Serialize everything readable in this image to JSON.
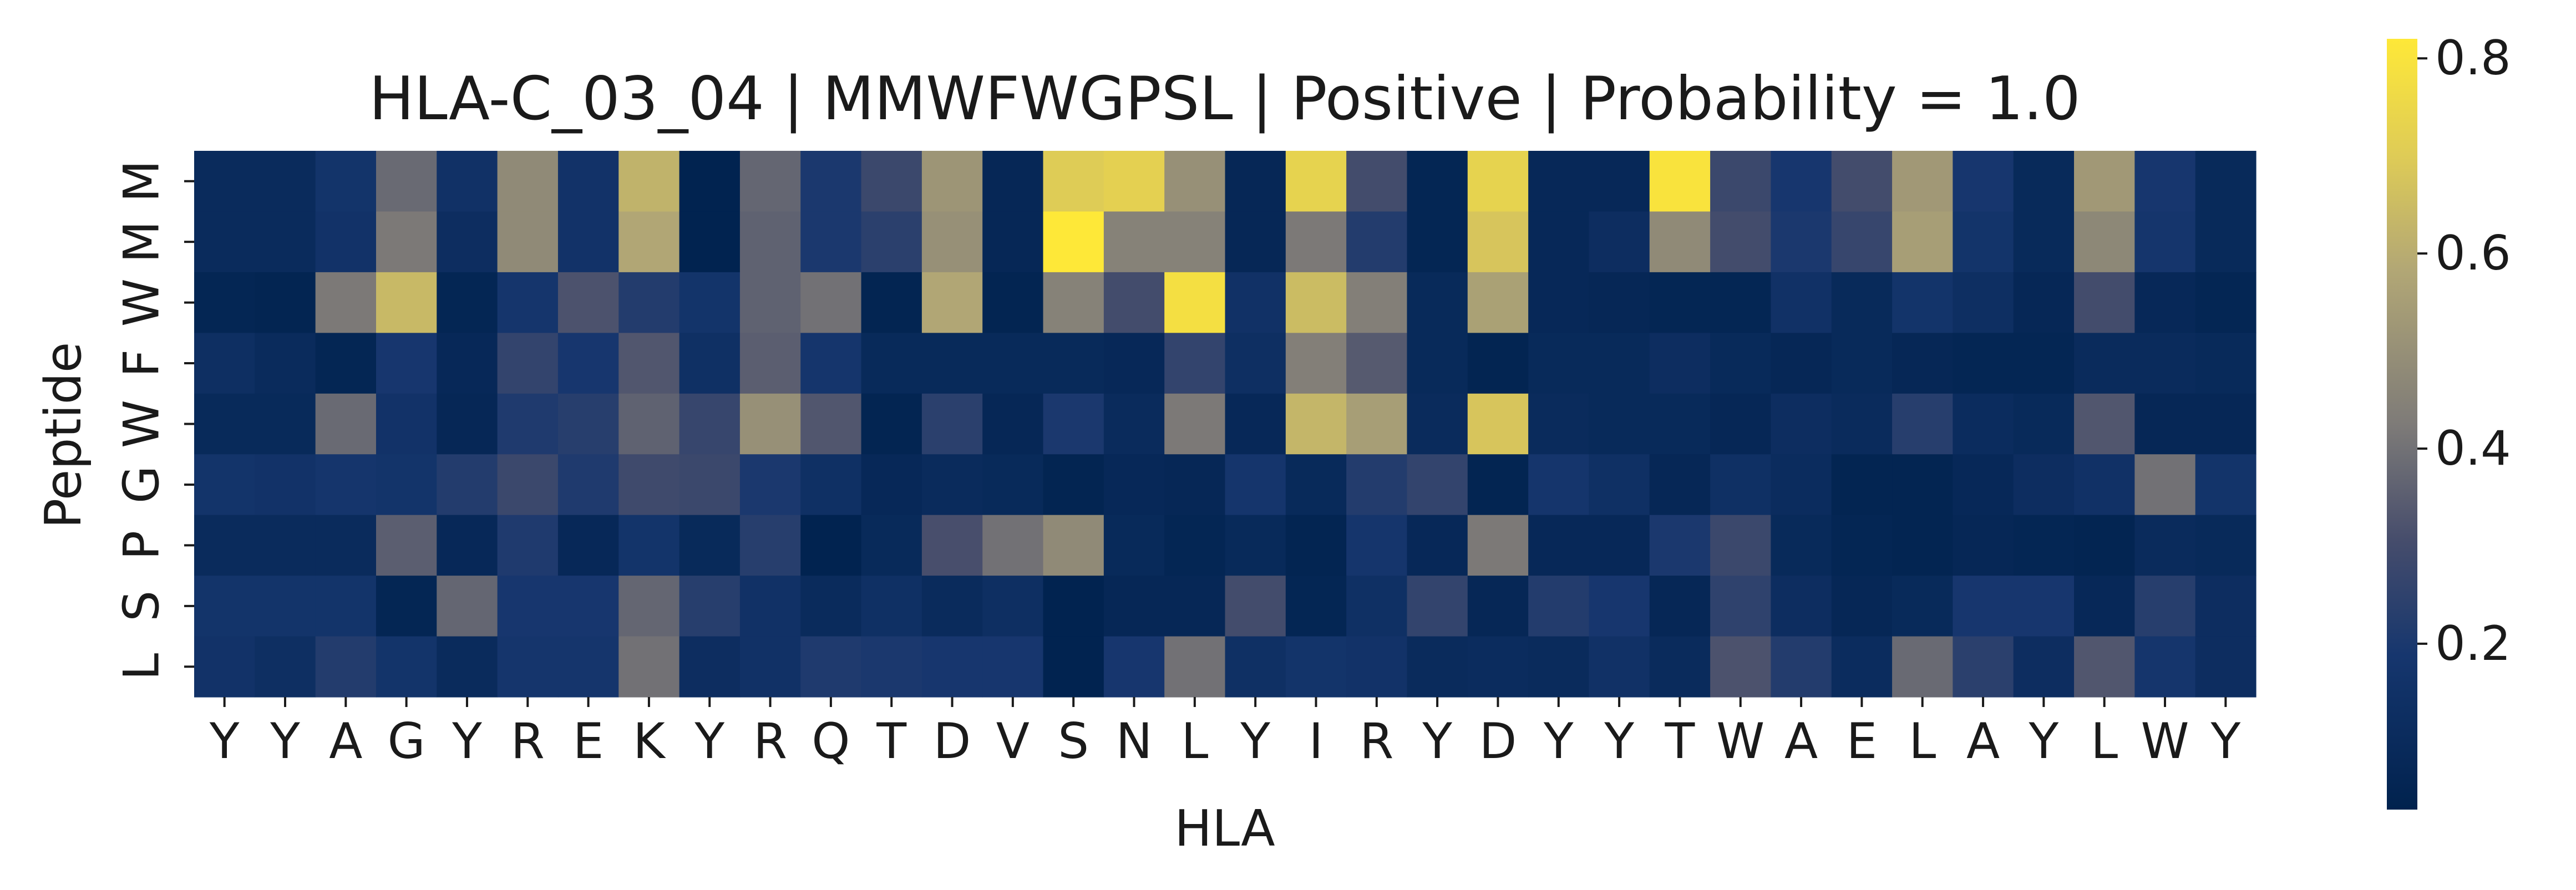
{
  "chart_data": {
    "type": "heatmap",
    "title": "HLA-C_03_04 | MMWFWGPSL | Positive | Probability = 1.0",
    "xlabel": "HLA",
    "ylabel": "Peptide",
    "x_categories": [
      "Y",
      "Y",
      "A",
      "G",
      "Y",
      "R",
      "E",
      "K",
      "Y",
      "R",
      "Q",
      "T",
      "D",
      "V",
      "S",
      "N",
      "L",
      "Y",
      "I",
      "R",
      "Y",
      "D",
      "Y",
      "Y",
      "T",
      "W",
      "A",
      "E",
      "L",
      "A",
      "Y",
      "L",
      "W",
      "Y"
    ],
    "y_categories": [
      "M",
      "M",
      "W",
      "F",
      "W",
      "G",
      "P",
      "S",
      "L"
    ],
    "values": [
      [
        0.1,
        0.1,
        0.17,
        0.38,
        0.15,
        0.48,
        0.16,
        0.62,
        0.04,
        0.37,
        0.2,
        0.28,
        0.52,
        0.07,
        0.7,
        0.72,
        0.5,
        0.07,
        0.73,
        0.3,
        0.06,
        0.73,
        0.08,
        0.08,
        0.8,
        0.28,
        0.19,
        0.3,
        0.53,
        0.19,
        0.09,
        0.53,
        0.19,
        0.09
      ],
      [
        0.1,
        0.1,
        0.16,
        0.42,
        0.12,
        0.48,
        0.16,
        0.58,
        0.04,
        0.36,
        0.2,
        0.24,
        0.5,
        0.07,
        0.82,
        0.45,
        0.45,
        0.07,
        0.42,
        0.22,
        0.06,
        0.68,
        0.08,
        0.12,
        0.48,
        0.3,
        0.2,
        0.27,
        0.55,
        0.17,
        0.09,
        0.47,
        0.18,
        0.09
      ],
      [
        0.06,
        0.05,
        0.42,
        0.64,
        0.06,
        0.18,
        0.32,
        0.22,
        0.17,
        0.36,
        0.4,
        0.05,
        0.58,
        0.05,
        0.45,
        0.3,
        0.78,
        0.15,
        0.65,
        0.44,
        0.09,
        0.56,
        0.08,
        0.07,
        0.06,
        0.06,
        0.15,
        0.09,
        0.17,
        0.13,
        0.07,
        0.3,
        0.08,
        0.06
      ],
      [
        0.13,
        0.1,
        0.06,
        0.19,
        0.08,
        0.26,
        0.19,
        0.33,
        0.14,
        0.35,
        0.18,
        0.09,
        0.09,
        0.09,
        0.09,
        0.08,
        0.26,
        0.13,
        0.44,
        0.34,
        0.09,
        0.05,
        0.09,
        0.09,
        0.12,
        0.09,
        0.07,
        0.09,
        0.07,
        0.06,
        0.06,
        0.1,
        0.1,
        0.09
      ],
      [
        0.09,
        0.09,
        0.38,
        0.16,
        0.07,
        0.21,
        0.23,
        0.36,
        0.27,
        0.5,
        0.33,
        0.05,
        0.24,
        0.07,
        0.2,
        0.1,
        0.42,
        0.08,
        0.63,
        0.55,
        0.1,
        0.68,
        0.1,
        0.09,
        0.09,
        0.07,
        0.12,
        0.1,
        0.23,
        0.11,
        0.09,
        0.33,
        0.07,
        0.07
      ],
      [
        0.17,
        0.16,
        0.18,
        0.17,
        0.22,
        0.28,
        0.21,
        0.29,
        0.28,
        0.2,
        0.14,
        0.08,
        0.1,
        0.09,
        0.05,
        0.08,
        0.07,
        0.18,
        0.09,
        0.22,
        0.26,
        0.05,
        0.18,
        0.14,
        0.07,
        0.14,
        0.11,
        0.05,
        0.05,
        0.08,
        0.12,
        0.15,
        0.4,
        0.17
      ],
      [
        0.1,
        0.1,
        0.1,
        0.35,
        0.08,
        0.21,
        0.08,
        0.17,
        0.09,
        0.23,
        0.04,
        0.09,
        0.31,
        0.4,
        0.48,
        0.09,
        0.06,
        0.09,
        0.05,
        0.18,
        0.08,
        0.42,
        0.08,
        0.08,
        0.2,
        0.28,
        0.09,
        0.06,
        0.05,
        0.07,
        0.06,
        0.05,
        0.1,
        0.09
      ],
      [
        0.17,
        0.17,
        0.17,
        0.06,
        0.37,
        0.19,
        0.19,
        0.37,
        0.23,
        0.15,
        0.1,
        0.14,
        0.1,
        0.13,
        0.04,
        0.07,
        0.07,
        0.3,
        0.06,
        0.14,
        0.26,
        0.07,
        0.22,
        0.19,
        0.07,
        0.25,
        0.12,
        0.07,
        0.09,
        0.19,
        0.19,
        0.08,
        0.23,
        0.12
      ],
      [
        0.16,
        0.13,
        0.22,
        0.17,
        0.1,
        0.18,
        0.18,
        0.4,
        0.12,
        0.15,
        0.21,
        0.2,
        0.19,
        0.19,
        0.04,
        0.19,
        0.4,
        0.14,
        0.17,
        0.16,
        0.1,
        0.11,
        0.1,
        0.15,
        0.1,
        0.32,
        0.22,
        0.11,
        0.38,
        0.24,
        0.12,
        0.33,
        0.18,
        0.12
      ]
    ],
    "colormap": "cividis",
    "vmin": 0.03,
    "vmax": 0.82,
    "colorbar_ticks": [
      "0.2",
      "0.4",
      "0.6",
      "0.8"
    ],
    "colorbar_tick_values": [
      0.2,
      0.4,
      0.6,
      0.8
    ],
    "grid": false,
    "legend": "colorbar-right"
  }
}
